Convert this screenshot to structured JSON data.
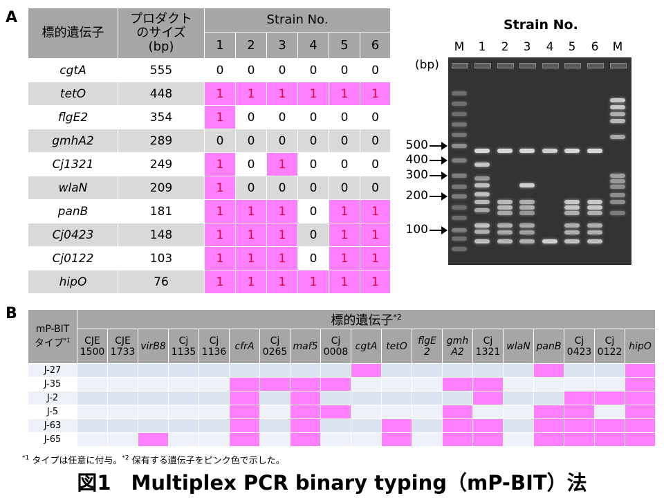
{
  "panel_a": {
    "label": "A",
    "header": {
      "gene_col": "標的遺伝子",
      "size_col_line1": "プロダクト",
      "size_col_line2": "のサイズ",
      "size_col_line3": "(bp)",
      "strain_header": "Strain No.",
      "strains": [
        "1",
        "2",
        "3",
        "4",
        "5",
        "6"
      ]
    },
    "rows": [
      {
        "gene": "cgtA",
        "size": "555",
        "values": [
          "0",
          "0",
          "0",
          "0",
          "0",
          "0"
        ]
      },
      {
        "gene": "tetO",
        "size": "448",
        "values": [
          "1",
          "1",
          "1",
          "1",
          "1",
          "1"
        ]
      },
      {
        "gene": "flgE2",
        "size": "354",
        "values": [
          "1",
          "0",
          "0",
          "0",
          "0",
          "0"
        ]
      },
      {
        "gene": "gmhA2",
        "size": "289",
        "values": [
          "0",
          "0",
          "0",
          "0",
          "0",
          "0"
        ]
      },
      {
        "gene": "Cj1321",
        "size": "249",
        "values": [
          "1",
          "0",
          "1",
          "0",
          "0",
          "0"
        ]
      },
      {
        "gene": "wlaN",
        "size": "209",
        "values": [
          "1",
          "0",
          "0",
          "0",
          "0",
          "0"
        ]
      },
      {
        "gene": "panB",
        "size": "181",
        "values": [
          "1",
          "1",
          "1",
          "0",
          "1",
          "1"
        ]
      },
      {
        "gene": "Cj0423",
        "size": "148",
        "values": [
          "1",
          "1",
          "1",
          "0",
          "1",
          "1"
        ]
      },
      {
        "gene": "Cj0122",
        "size": "103",
        "values": [
          "1",
          "1",
          "1",
          "0",
          "1",
          "1"
        ]
      },
      {
        "gene": "hipO",
        "size": "76",
        "values": [
          "1",
          "1",
          "1",
          "1",
          "1",
          "1"
        ]
      }
    ],
    "positive_color": "#ff80ff",
    "positive_text_color": "#e8003a"
  },
  "gel": {
    "title": "Strain No.",
    "lanes": [
      "M",
      "1",
      "2",
      "3",
      "4",
      "5",
      "6",
      "M"
    ],
    "unit": "(bp)",
    "markers": [
      "500",
      "400",
      "300",
      "200",
      "100"
    ]
  },
  "panel_b": {
    "label": "B",
    "type_header_line1": "mP-BIT",
    "type_header_line2": "タイプ",
    "type_header_sup": "*1",
    "genes_header": "標的遺伝子",
    "genes_header_sup": "*2",
    "genes": [
      {
        "l1": "CJE",
        "l2": "1500",
        "italic": false
      },
      {
        "l1": "CJE",
        "l2": "1733",
        "italic": false
      },
      {
        "l1": "virB8",
        "l2": "",
        "italic": true
      },
      {
        "l1": "Cj",
        "l2": "1135",
        "italic": false
      },
      {
        "l1": "Cj",
        "l2": "1136",
        "italic": false
      },
      {
        "l1": "cfrA",
        "l2": "",
        "italic": true
      },
      {
        "l1": "Cj",
        "l2": "0265",
        "italic": false
      },
      {
        "l1": "maf5",
        "l2": "",
        "italic": true
      },
      {
        "l1": "Cj",
        "l2": "0008",
        "italic": false
      },
      {
        "l1": "cgtA",
        "l2": "",
        "italic": true
      },
      {
        "l1": "tetO",
        "l2": "",
        "italic": true
      },
      {
        "l1": "flgE",
        "l2": "2",
        "italic": true
      },
      {
        "l1": "gmh",
        "l2": "A2",
        "italic": true
      },
      {
        "l1": "Cj",
        "l2": "1321",
        "italic": false
      },
      {
        "l1": "wlaN",
        "l2": "",
        "italic": true
      },
      {
        "l1": "panB",
        "l2": "",
        "italic": true
      },
      {
        "l1": "Cj",
        "l2": "0423",
        "italic": false
      },
      {
        "l1": "Cj",
        "l2": "0122",
        "italic": false
      },
      {
        "l1": "hipO",
        "l2": "",
        "italic": true
      }
    ],
    "rows": [
      {
        "type": "J-27",
        "pos": [
          0,
          0,
          0,
          0,
          0,
          0,
          0,
          0,
          0,
          1,
          0,
          0,
          0,
          0,
          0,
          1,
          0,
          0,
          1
        ]
      },
      {
        "type": "J-35",
        "pos": [
          0,
          0,
          0,
          0,
          0,
          1,
          1,
          1,
          1,
          0,
          0,
          0,
          1,
          1,
          0,
          0,
          0,
          0,
          1
        ]
      },
      {
        "type": "J-2",
        "pos": [
          0,
          0,
          0,
          0,
          0,
          1,
          0,
          1,
          0,
          0,
          0,
          0,
          0,
          1,
          0,
          0,
          1,
          1,
          1
        ]
      },
      {
        "type": "J-5",
        "pos": [
          0,
          0,
          0,
          0,
          0,
          1,
          0,
          1,
          1,
          0,
          0,
          0,
          1,
          0,
          0,
          1,
          1,
          0,
          1
        ]
      },
      {
        "type": "J-63",
        "pos": [
          0,
          0,
          0,
          0,
          0,
          1,
          0,
          1,
          0,
          0,
          1,
          0,
          1,
          1,
          0,
          1,
          1,
          1,
          1
        ]
      },
      {
        "type": "J-65",
        "pos": [
          0,
          0,
          1,
          0,
          0,
          1,
          0,
          1,
          0,
          0,
          1,
          0,
          1,
          1,
          0,
          1,
          1,
          1,
          1
        ]
      }
    ]
  },
  "footnote": {
    "sup1": "*1",
    "text1": " タイプは任意に付与。",
    "sup2": "*2",
    "text2": " 保有する遺伝子をピンク色で示した。"
  },
  "caption": "図1　Multiplex PCR binary typing（mP-BIT）法"
}
